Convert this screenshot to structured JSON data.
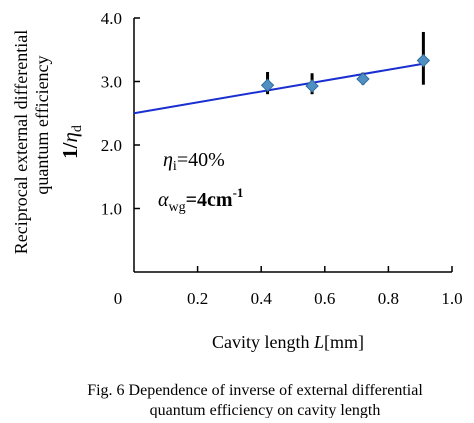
{
  "chart_data": {
    "type": "scatter",
    "xlim": [
      0,
      1.0
    ],
    "ylim": [
      0,
      4.0
    ],
    "x_ticks": [
      {
        "value": 0,
        "label": "0"
      },
      {
        "value": 0.2,
        "label": "0.2"
      },
      {
        "value": 0.4,
        "label": "0.4"
      },
      {
        "value": 0.6,
        "label": "0.6"
      },
      {
        "value": 0.8,
        "label": "0.8"
      },
      {
        "value": 1.0,
        "label": "1.0"
      }
    ],
    "y_ticks": [
      {
        "value": 1.0,
        "label": "1.0"
      },
      {
        "value": 2.0,
        "label": "2.0"
      },
      {
        "value": 3.0,
        "label": "3.0"
      },
      {
        "value": 4.0,
        "label": "4.0"
      }
    ],
    "xlabel": {
      "text": "Cavity length ",
      "symbol": "L",
      "unit": "[mm]"
    },
    "ylabel": {
      "line1": "Reciprocal external differential",
      "line2": "quantum efficiency",
      "symbol_prefix": "1/",
      "symbol": "η",
      "symbol_sub": "d"
    },
    "points": [
      {
        "x": 0.42,
        "y": 2.94,
        "err_low": 2.8,
        "err_high": 3.15
      },
      {
        "x": 0.56,
        "y": 2.93,
        "err_low": 2.8,
        "err_high": 3.13
      },
      {
        "x": 0.72,
        "y": 3.04,
        "err_low": 2.95,
        "err_high": 3.14
      },
      {
        "x": 0.91,
        "y": 3.33,
        "err_low": 2.95,
        "err_high": 3.78
      }
    ],
    "fit_line": {
      "x0": 0,
      "y0": 2.5,
      "x1": 0.91,
      "y1": 3.28
    },
    "annotations": {
      "eta_symbol": "η",
      "eta_sub": "i",
      "eta_value": "=40%",
      "alpha_symbol": "α",
      "alpha_sub": "wg",
      "alpha_value": "=4cm",
      "alpha_exp": "-1"
    },
    "colors": {
      "fit_line": "#1a2fd0",
      "marker": "#4f8fc4",
      "marker_edge": "#2f6e9e",
      "error_bar": "#000000",
      "axis": "#000000"
    },
    "grid": false
  },
  "caption": {
    "line1": "Fig. 6  Dependence of inverse of external differential",
    "line2": "quantum efficiency on cavity length"
  }
}
